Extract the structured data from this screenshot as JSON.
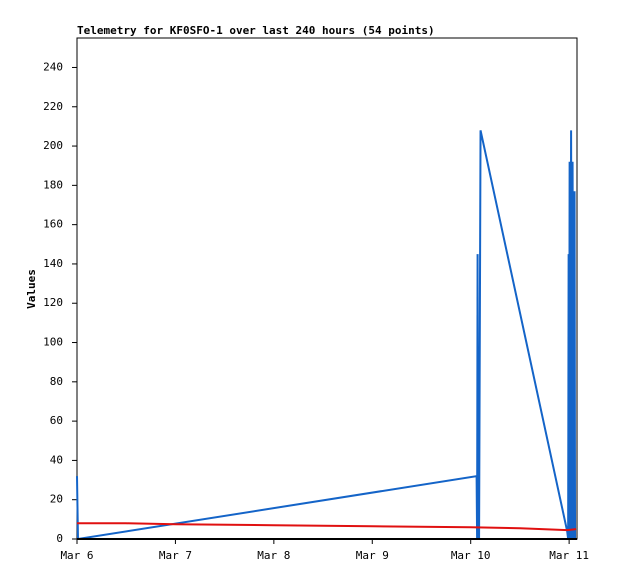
{
  "chart_data": {
    "type": "line",
    "title": "Telemetry for KF0SFO-1 over last 240 hours (54 points)",
    "y_label": "Values",
    "xlim": [
      0,
      5.08
    ],
    "xticks": [
      {
        "value": 0,
        "label": "Mar 6"
      },
      {
        "value": 1,
        "label": "Mar 7"
      },
      {
        "value": 2,
        "label": "Mar 8"
      },
      {
        "value": 3,
        "label": "Mar 9"
      },
      {
        "value": 4,
        "label": "Mar 10"
      },
      {
        "value": 5,
        "label": "Mar 11"
      }
    ],
    "ylim": [
      0,
      255
    ],
    "yticks": [
      0,
      20,
      40,
      60,
      80,
      100,
      120,
      140,
      160,
      180,
      200,
      220,
      240
    ],
    "series": [
      {
        "color": "#1464c8",
        "x": [
          0,
          0.01,
          4.06,
          4.065,
          4.07,
          4.075,
          4.08,
          4.085,
          4.1,
          4.98,
          4.99,
          4.995,
          5.0,
          5.005,
          5.01,
          5.02,
          5.03,
          5.035,
          5.045,
          5.055,
          5.06
        ],
        "values": [
          32,
          0,
          32,
          0,
          145,
          0,
          97,
          0,
          208,
          4,
          0,
          145,
          0,
          192,
          0,
          208,
          0,
          192,
          0,
          177,
          0
        ]
      },
      {
        "color": "#e01010",
        "x": [
          0,
          0.5,
          1,
          2,
          3,
          4,
          4.5,
          4.98,
          5.07
        ],
        "values": [
          8,
          8,
          7.5,
          7,
          6.5,
          6,
          5.5,
          4.5,
          5
        ]
      }
    ]
  }
}
